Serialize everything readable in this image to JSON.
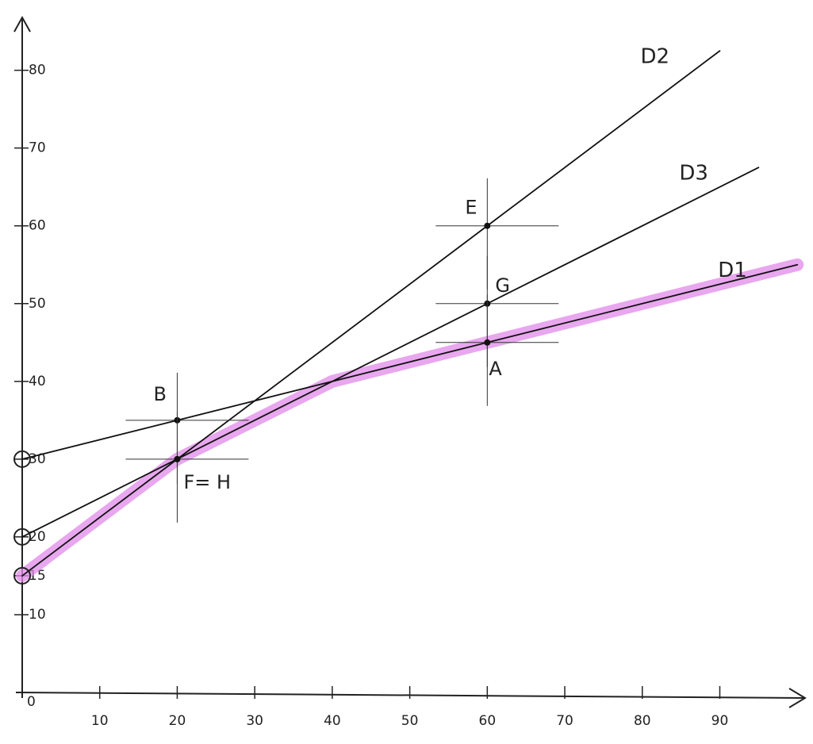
{
  "chart_data": {
    "type": "line",
    "xlim": [
      0,
      101
    ],
    "ylim": [
      0,
      87
    ],
    "xticks": [
      10,
      20,
      30,
      40,
      50,
      60,
      70,
      80,
      90
    ],
    "yticks": [
      0,
      10,
      15,
      20,
      30,
      40,
      50,
      60,
      70,
      80
    ],
    "series": [
      {
        "color": "#e08ae8",
        "x": [
          0,
          20,
          40,
          60,
          100
        ],
        "values": [
          15,
          30,
          40,
          45,
          55
        ]
      },
      {
        "name": "D1",
        "color": "#111111",
        "x": [
          0,
          20,
          40,
          60,
          100
        ],
        "values": [
          30,
          35,
          40,
          45,
          55
        ]
      },
      {
        "name": "D2",
        "color": "#111111",
        "x": [
          0,
          20,
          60,
          90
        ],
        "values": [
          15,
          30,
          60,
          82.5
        ]
      },
      {
        "name": "D3",
        "color": "#111111",
        "x": [
          0,
          20,
          60,
          95
        ],
        "values": [
          20,
          30,
          50,
          67.5
        ]
      }
    ],
    "annotations": [
      {
        "text": "B",
        "x": 20,
        "y": 35
      },
      {
        "text": "F= H",
        "x": 20,
        "y": 30
      },
      {
        "text": "E",
        "x": 60,
        "y": 60
      },
      {
        "text": "G",
        "x": 60,
        "y": 50
      },
      {
        "text": "A",
        "x": 60,
        "y": 45
      }
    ]
  }
}
